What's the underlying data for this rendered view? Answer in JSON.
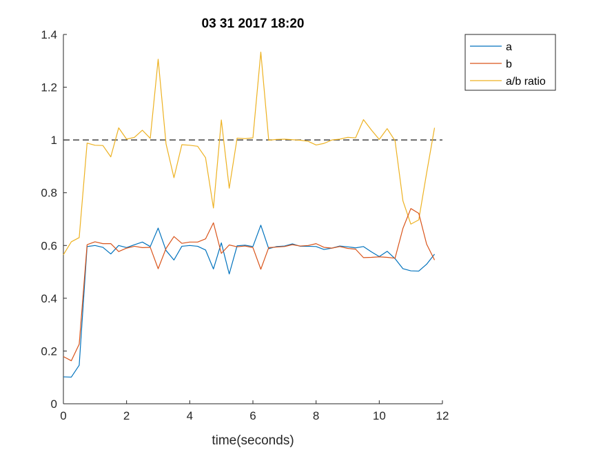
{
  "chart_data": {
    "type": "line",
    "title": "03 31 2017 18:20",
    "xlabel": "time(seconds)",
    "ylabel": "",
    "xlim": [
      0,
      12
    ],
    "ylim": [
      0,
      1.4
    ],
    "xticks": [
      0,
      2,
      4,
      6,
      8,
      10,
      12
    ],
    "yticks": [
      0,
      0.2,
      0.4,
      0.6,
      0.8,
      1,
      1.2,
      1.4
    ],
    "xtick_labels": [
      "0",
      "2",
      "4",
      "6",
      "8",
      "10",
      "12"
    ],
    "ytick_labels": [
      "0",
      "0.2",
      "0.4",
      "0.6",
      "0.8",
      "1",
      "1.2",
      "1.4"
    ],
    "grid": false,
    "legend_position": "outside top-right",
    "reference_line": {
      "y": 1,
      "style": "dashed",
      "color": "#404040"
    },
    "x": [
      0,
      0.25,
      0.5,
      0.75,
      1,
      1.25,
      1.5,
      1.75,
      2,
      2.25,
      2.5,
      2.75,
      3,
      3.25,
      3.5,
      3.75,
      4,
      4.25,
      4.5,
      4.75,
      5,
      5.25,
      5.5,
      5.75,
      6,
      6.25,
      6.5,
      6.75,
      7,
      7.25,
      7.5,
      7.75,
      8,
      8.25,
      8.5,
      8.75,
      9,
      9.25,
      9.5,
      9.75,
      10,
      10.25,
      10.5,
      10.75,
      11,
      11.25,
      11.5,
      11.75
    ],
    "series": [
      {
        "name": "a",
        "color": "#0072BD",
        "values": [
          0.102,
          0.101,
          0.146,
          0.596,
          0.6,
          0.593,
          0.568,
          0.6,
          0.592,
          0.603,
          0.613,
          0.596,
          0.666,
          0.581,
          0.545,
          0.597,
          0.6,
          0.597,
          0.583,
          0.511,
          0.61,
          0.492,
          0.599,
          0.601,
          0.596,
          0.677,
          0.588,
          0.596,
          0.598,
          0.606,
          0.597,
          0.597,
          0.596,
          0.585,
          0.59,
          0.598,
          0.595,
          0.591,
          0.596,
          0.576,
          0.558,
          0.578,
          0.55,
          0.512,
          0.504,
          0.503,
          0.529,
          0.567
        ]
      },
      {
        "name": "b",
        "color": "#D95319",
        "values": [
          0.179,
          0.163,
          0.226,
          0.603,
          0.614,
          0.607,
          0.607,
          0.577,
          0.59,
          0.597,
          0.592,
          0.593,
          0.512,
          0.589,
          0.634,
          0.608,
          0.613,
          0.613,
          0.625,
          0.686,
          0.57,
          0.602,
          0.595,
          0.598,
          0.592,
          0.51,
          0.592,
          0.594,
          0.596,
          0.603,
          0.598,
          0.6,
          0.607,
          0.593,
          0.59,
          0.596,
          0.589,
          0.586,
          0.554,
          0.555,
          0.557,
          0.555,
          0.552,
          0.665,
          0.74,
          0.722,
          0.605,
          0.545
        ]
      },
      {
        "name": "a/b ratio",
        "color": "#EDB120",
        "values": [
          0.565,
          0.614,
          0.63,
          0.988,
          0.98,
          0.979,
          0.936,
          1.046,
          1.003,
          1.01,
          1.037,
          1.006,
          1.306,
          0.985,
          0.857,
          0.982,
          0.98,
          0.976,
          0.933,
          0.742,
          1.076,
          0.817,
          1.007,
          1.005,
          1.008,
          1.333,
          0.999,
          1.002,
          1.003,
          1.001,
          0.999,
          0.995,
          0.981,
          0.987,
          1.0,
          1.003,
          1.01,
          1.008,
          1.077,
          1.038,
          1.002,
          1.043,
          0.997,
          0.769,
          0.681,
          0.697,
          0.875,
          1.046
        ]
      }
    ]
  }
}
